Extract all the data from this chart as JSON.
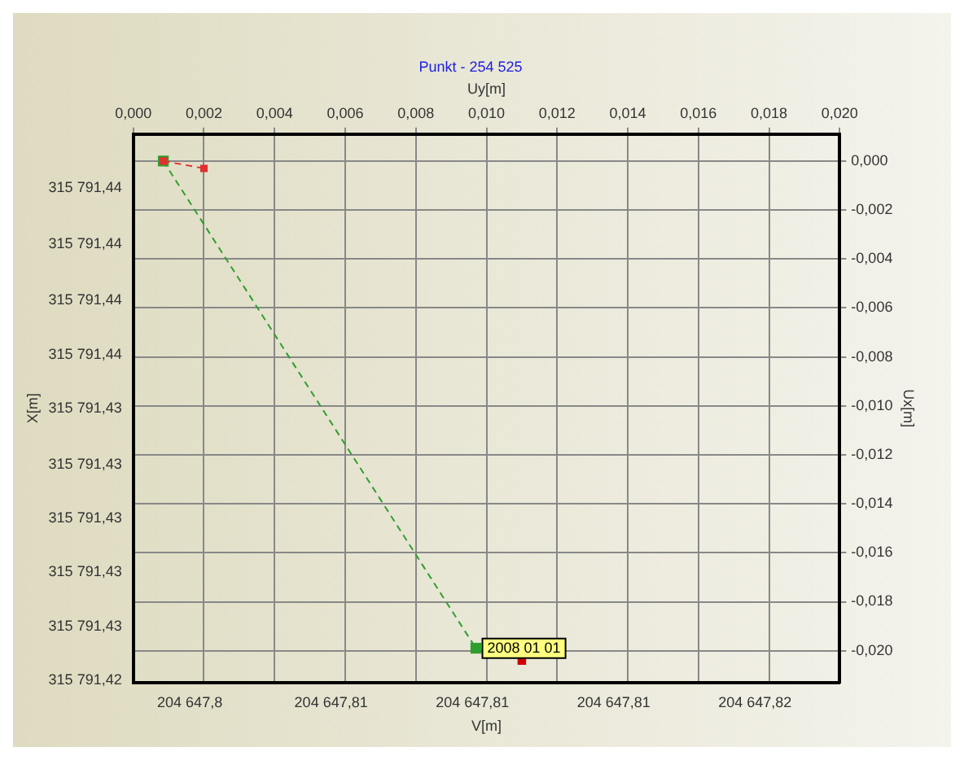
{
  "chart_data": {
    "type": "line",
    "title": "Punkt - 254 525",
    "xlabel": "V[m]",
    "ylabel": "X[m]",
    "x2label": "Uy[m]",
    "y2label": "Ux[m]",
    "xlim": [
      204647.8,
      204647.82
    ],
    "xticks": [
      {
        "value": 204647.8016,
        "label": "204 647,8"
      },
      {
        "value": 204647.8056,
        "label": "204 647,81"
      },
      {
        "value": 204647.8096,
        "label": "204 647,81"
      },
      {
        "value": 204647.8136,
        "label": "204 647,81"
      },
      {
        "value": 204647.8176,
        "label": "204 647,82"
      }
    ],
    "ylim": [
      315791.4237,
      315791.4461
    ],
    "yticks": [
      {
        "value": 315791.4439,
        "label": "315 791,44"
      },
      {
        "value": 315791.4416,
        "label": "315 791,44"
      },
      {
        "value": 315791.4393,
        "label": "315 791,44"
      },
      {
        "value": 315791.4371,
        "label": "315 791,44"
      },
      {
        "value": 315791.4349,
        "label": "315 791,43"
      },
      {
        "value": 315791.4326,
        "label": "315 791,43"
      },
      {
        "value": 315791.4304,
        "label": "315 791,43"
      },
      {
        "value": 315791.4282,
        "label": "315 791,43"
      },
      {
        "value": 315791.426,
        "label": "315 791,43"
      },
      {
        "value": 315791.4238,
        "label": "315 791,42"
      }
    ],
    "x2lim": [
      0,
      0.02
    ],
    "x2ticks": [
      {
        "value": 0,
        "label": "0,000"
      },
      {
        "value": 0.002,
        "label": "0,002"
      },
      {
        "value": 0.004,
        "label": "0,004"
      },
      {
        "value": 0.006,
        "label": "0,006"
      },
      {
        "value": 0.008,
        "label": "0,008"
      },
      {
        "value": 0.01,
        "label": "0,010"
      },
      {
        "value": 0.012,
        "label": "0,012"
      },
      {
        "value": 0.014,
        "label": "0,014"
      },
      {
        "value": 0.016,
        "label": "0,016"
      },
      {
        "value": 0.018,
        "label": "0,018"
      },
      {
        "value": 0.02,
        "label": "0,020"
      }
    ],
    "y2lim": [
      -0.0213,
      0.0011
    ],
    "y2ticks": [
      {
        "value": 0,
        "label": "0,000"
      },
      {
        "value": -0.002,
        "label": "-0,002"
      },
      {
        "value": -0.004,
        "label": "-0,004"
      },
      {
        "value": -0.006,
        "label": "-0,006"
      },
      {
        "value": -0.008,
        "label": "-0,008"
      },
      {
        "value": -0.01,
        "label": "-0,010"
      },
      {
        "value": -0.012,
        "label": "-0,012"
      },
      {
        "value": -0.014,
        "label": "-0,014"
      },
      {
        "value": -0.016,
        "label": "-0,016"
      },
      {
        "value": -0.018,
        "label": "-0,018"
      },
      {
        "value": -0.02,
        "label": "-0,020"
      }
    ],
    "grid": true,
    "series": [
      {
        "color": "#2e9e2e",
        "marker": "square",
        "line_style": "dashed",
        "x": [
          204647.80085,
          204647.8097
        ],
        "values": [
          315791.445,
          315791.4251
        ]
      },
      {
        "color": "#e03030",
        "marker": "square",
        "line_style": "dashed",
        "x": [
          204647.80085,
          204647.802
        ],
        "values": [
          315791.445,
          315791.4447
        ]
      },
      {
        "type": "scatter",
        "color": "#d00000",
        "marker": "square",
        "x": [
          204647.811
        ],
        "values": [
          315791.4246
        ]
      }
    ],
    "annotations": [
      {
        "text": "2008 01 01",
        "x": 204647.8097,
        "y": 315791.4251
      }
    ]
  }
}
